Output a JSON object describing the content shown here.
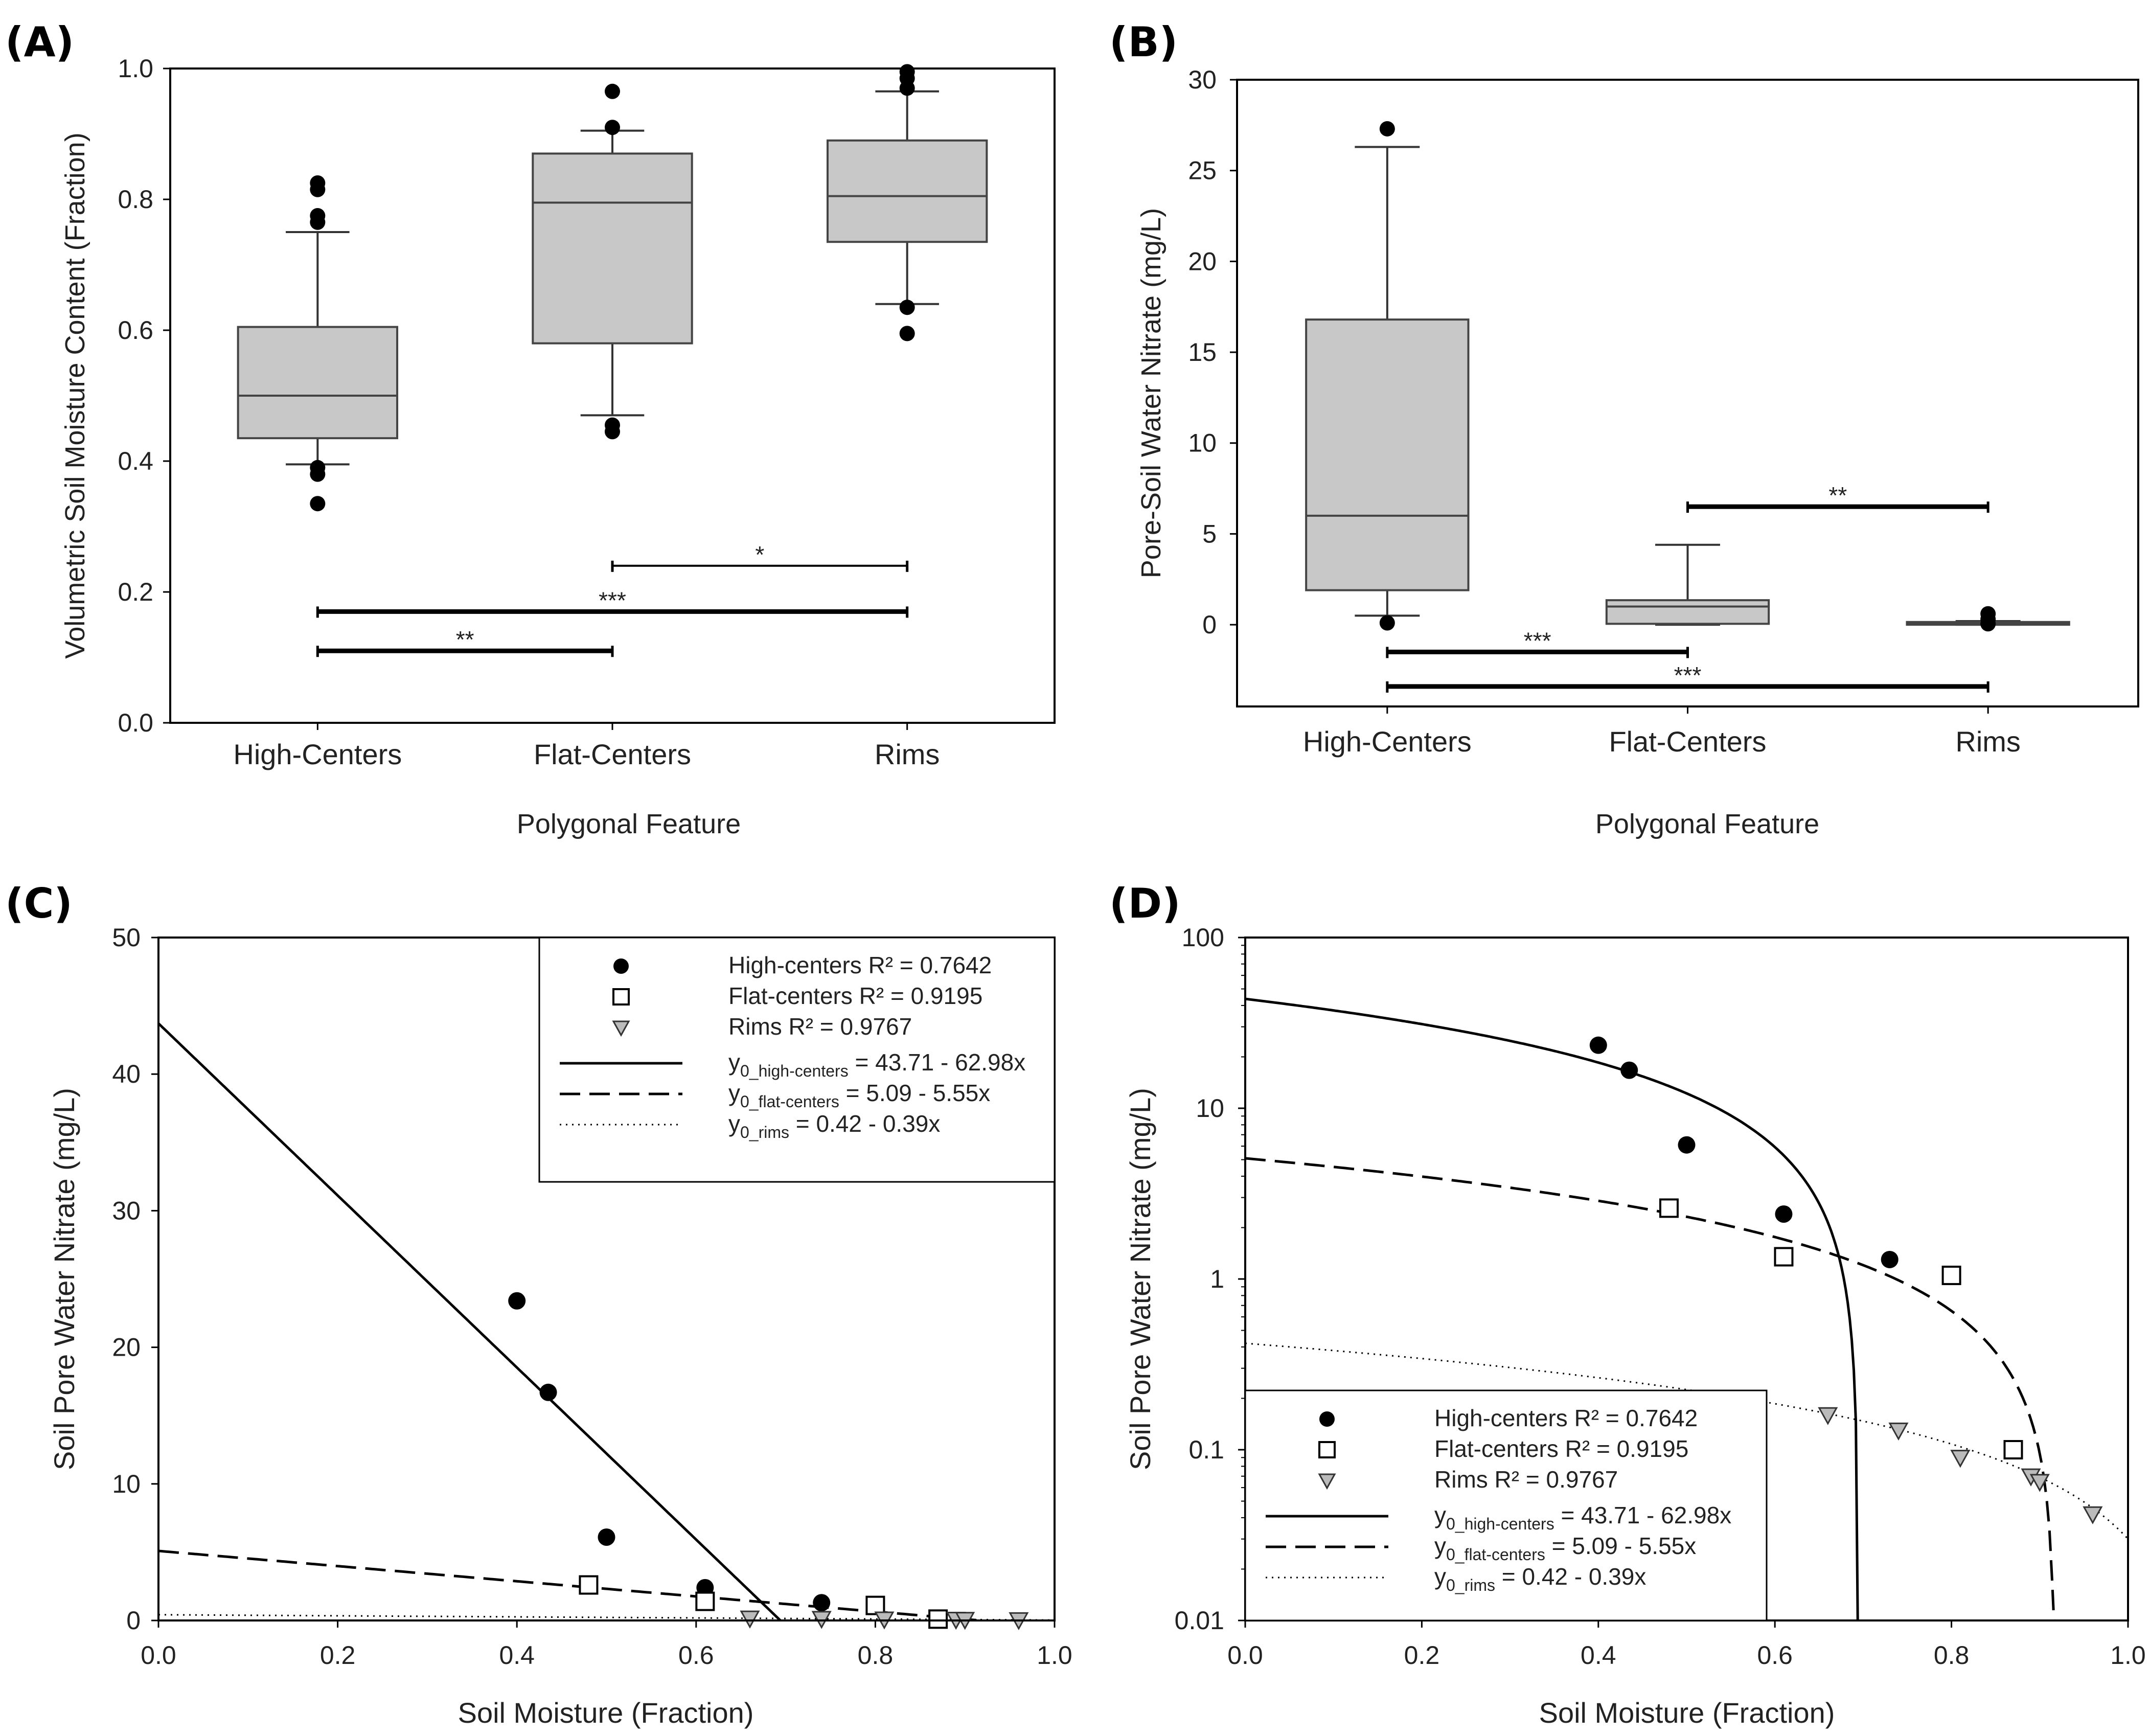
{
  "chart_data": [
    {
      "panel_label": "(A)",
      "type": "box",
      "ylabel": "Volumetric Soil Moisture Content (Fraction)",
      "xlabel": "Polygonal Feature",
      "ylim": [
        0,
        1
      ],
      "yticks": [
        "0.0",
        "0.2",
        "0.4",
        "0.6",
        "0.8",
        "1.0"
      ],
      "categories": [
        "High-Centers",
        "Flat-Centers",
        "Rims"
      ],
      "boxes": [
        {
          "q1": 0.435,
          "median": 0.5,
          "q3": 0.605,
          "whisker_low": 0.395,
          "whisker_high": 0.75,
          "outliers": [
            0.335,
            0.38,
            0.39,
            0.765,
            0.775,
            0.815,
            0.825
          ]
        },
        {
          "q1": 0.58,
          "median": 0.795,
          "q3": 0.87,
          "whisker_low": 0.47,
          "whisker_high": 0.905,
          "outliers": [
            0.445,
            0.455,
            0.91,
            0.965
          ]
        },
        {
          "q1": 0.735,
          "median": 0.805,
          "q3": 0.89,
          "whisker_low": 0.64,
          "whisker_high": 0.965,
          "outliers": [
            0.595,
            0.635,
            0.97,
            0.985,
            0.995
          ]
        }
      ],
      "significance": [
        {
          "from": 1,
          "to": 2,
          "y": 0.24,
          "label": "*",
          "weight": "thin"
        },
        {
          "from": 0,
          "to": 2,
          "y": 0.17,
          "label": "***",
          "weight": "bold"
        },
        {
          "from": 0,
          "to": 1,
          "y": 0.11,
          "label": "**",
          "weight": "bold"
        }
      ],
      "grid": false
    },
    {
      "panel_label": "(B)",
      "type": "box",
      "ylabel": "Pore-Soil Water Nitrate (mg/L)",
      "xlabel": "Polygonal Feature",
      "ylim": [
        -4.5,
        30
      ],
      "yticks": [
        "0",
        "5",
        "10",
        "15",
        "20",
        "25",
        "30"
      ],
      "ytick_values": [
        0,
        5,
        10,
        15,
        20,
        25,
        30
      ],
      "categories": [
        "High-Centers",
        "Flat-Centers",
        "Rims"
      ],
      "boxes": [
        {
          "q1": 1.9,
          "median": 6.0,
          "q3": 16.8,
          "whisker_low": 0.5,
          "whisker_high": 26.3,
          "outliers": [
            0.1,
            27.3
          ]
        },
        {
          "q1": 0.05,
          "median": 1.0,
          "q3": 1.35,
          "whisker_low": 0.0,
          "whisker_high": 4.4,
          "outliers": []
        },
        {
          "q1": 0.0,
          "median": 0.1,
          "q3": 0.15,
          "whisker_low": 0.0,
          "whisker_high": 0.2,
          "outliers": [
            0.05,
            0.3,
            0.6
          ]
        }
      ],
      "significance": [
        {
          "from": 1,
          "to": 2,
          "y": 6.5,
          "label": "**",
          "weight": "bold"
        },
        {
          "from": 0,
          "to": 1,
          "y": -1.5,
          "label": "***",
          "weight": "bold"
        },
        {
          "from": 0,
          "to": 2,
          "y": -3.4,
          "label": "***",
          "weight": "bold"
        }
      ],
      "grid": false
    },
    {
      "panel_label": "(C)",
      "type": "scatter",
      "ylabel": "Soil Pore Water Nitrate  (mg/L)",
      "xlabel": "Soil Moisture (Fraction)",
      "xlim": [
        0,
        1
      ],
      "ylim": [
        0,
        50
      ],
      "xticks": [
        "0.0",
        "0.2",
        "0.4",
        "0.6",
        "0.8",
        "1.0"
      ],
      "yticks": [
        "0",
        "10",
        "20",
        "30",
        "40",
        "50"
      ],
      "series": [
        {
          "name": "High-centers",
          "marker": "circle",
          "x": [
            0.4,
            0.435,
            0.5,
            0.61,
            0.74
          ],
          "y": [
            23.4,
            16.7,
            6.1,
            2.4,
            1.3
          ]
        },
        {
          "name": "Flat-centers",
          "marker": "square",
          "x": [
            0.48,
            0.61,
            0.8,
            0.87
          ],
          "y": [
            2.6,
            1.4,
            1.1,
            0.1
          ]
        },
        {
          "name": "Rims",
          "marker": "triangle",
          "x": [
            0.66,
            0.74,
            0.81,
            0.89,
            0.9,
            0.96
          ],
          "y": [
            0.16,
            0.13,
            0.09,
            0.07,
            0.06,
            0.04
          ]
        }
      ],
      "fits": [
        {
          "style": "solid",
          "intercept": 43.71,
          "slope": -62.98
        },
        {
          "style": "dashed",
          "intercept": 5.09,
          "slope": -5.55
        },
        {
          "style": "dotted",
          "intercept": 0.42,
          "slope": -0.39
        }
      ],
      "legend": {
        "placement": "top-right",
        "rows": [
          {
            "name": "High-centers",
            "r2": "R² = 0.7642"
          },
          {
            "name": "Flat-centers",
            "r2": "R² = 0.9195"
          },
          {
            "name": "Rims",
            "r2": "R² = 0.9767"
          }
        ],
        "fits": [
          {
            "y": "y",
            "sub": "0_high-centers",
            "eq": " = 43.71 - 62.98x"
          },
          {
            "y": "y",
            "sub": "0_flat-centers",
            "eq": " = 5.09 - 5.55x"
          },
          {
            "y": "y",
            "sub": "0_rims",
            "eq": " = 0.42 - 0.39x"
          }
        ]
      },
      "grid": false
    },
    {
      "panel_label": "(D)",
      "type": "scatter",
      "yscale": "log",
      "ylabel": "Soil Pore Water Nitrate  (mg/L)",
      "xlabel": "Soil Moisture (Fraction)",
      "xlim": [
        0,
        1
      ],
      "ylim": [
        0.01,
        100
      ],
      "xticks": [
        "0.0",
        "0.2",
        "0.4",
        "0.6",
        "0.8",
        "1.0"
      ],
      "yticks": [
        "0.01",
        "0.1",
        "1",
        "10",
        "100"
      ],
      "series": [
        {
          "name": "High-centers",
          "marker": "circle",
          "x": [
            0.4,
            0.435,
            0.5,
            0.61,
            0.73
          ],
          "y": [
            23.4,
            16.7,
            6.1,
            2.4,
            1.3
          ]
        },
        {
          "name": "Flat-centers",
          "marker": "square",
          "x": [
            0.48,
            0.61,
            0.8,
            0.87
          ],
          "y": [
            2.6,
            1.35,
            1.05,
            0.1
          ]
        },
        {
          "name": "Rims",
          "marker": "triangle",
          "x": [
            0.66,
            0.74,
            0.81,
            0.89,
            0.9,
            0.96
          ],
          "y": [
            0.16,
            0.13,
            0.09,
            0.07,
            0.065,
            0.042
          ]
        }
      ],
      "fits": [
        {
          "style": "solid",
          "intercept": 43.71,
          "slope": -62.98
        },
        {
          "style": "dashed",
          "intercept": 5.09,
          "slope": -5.55
        },
        {
          "style": "dotted",
          "intercept": 0.42,
          "slope": -0.39
        }
      ],
      "legend": {
        "placement": "bottom-left",
        "rows": [
          {
            "name": "High-centers",
            "r2": "R² = 0.7642"
          },
          {
            "name": "Flat-centers",
            "r2": "R² = 0.9195"
          },
          {
            "name": "Rims",
            "r2": "R² = 0.9767"
          }
        ],
        "fits": [
          {
            "y": "y",
            "sub": "0_high-centers",
            "eq": " = 43.71 - 62.98x"
          },
          {
            "y": "y",
            "sub": "0_flat-centers",
            "eq": " = 5.09 - 5.55x"
          },
          {
            "y": "y",
            "sub": "0_rims",
            "eq": " = 0.42 - 0.39x"
          }
        ]
      },
      "grid": false
    }
  ]
}
